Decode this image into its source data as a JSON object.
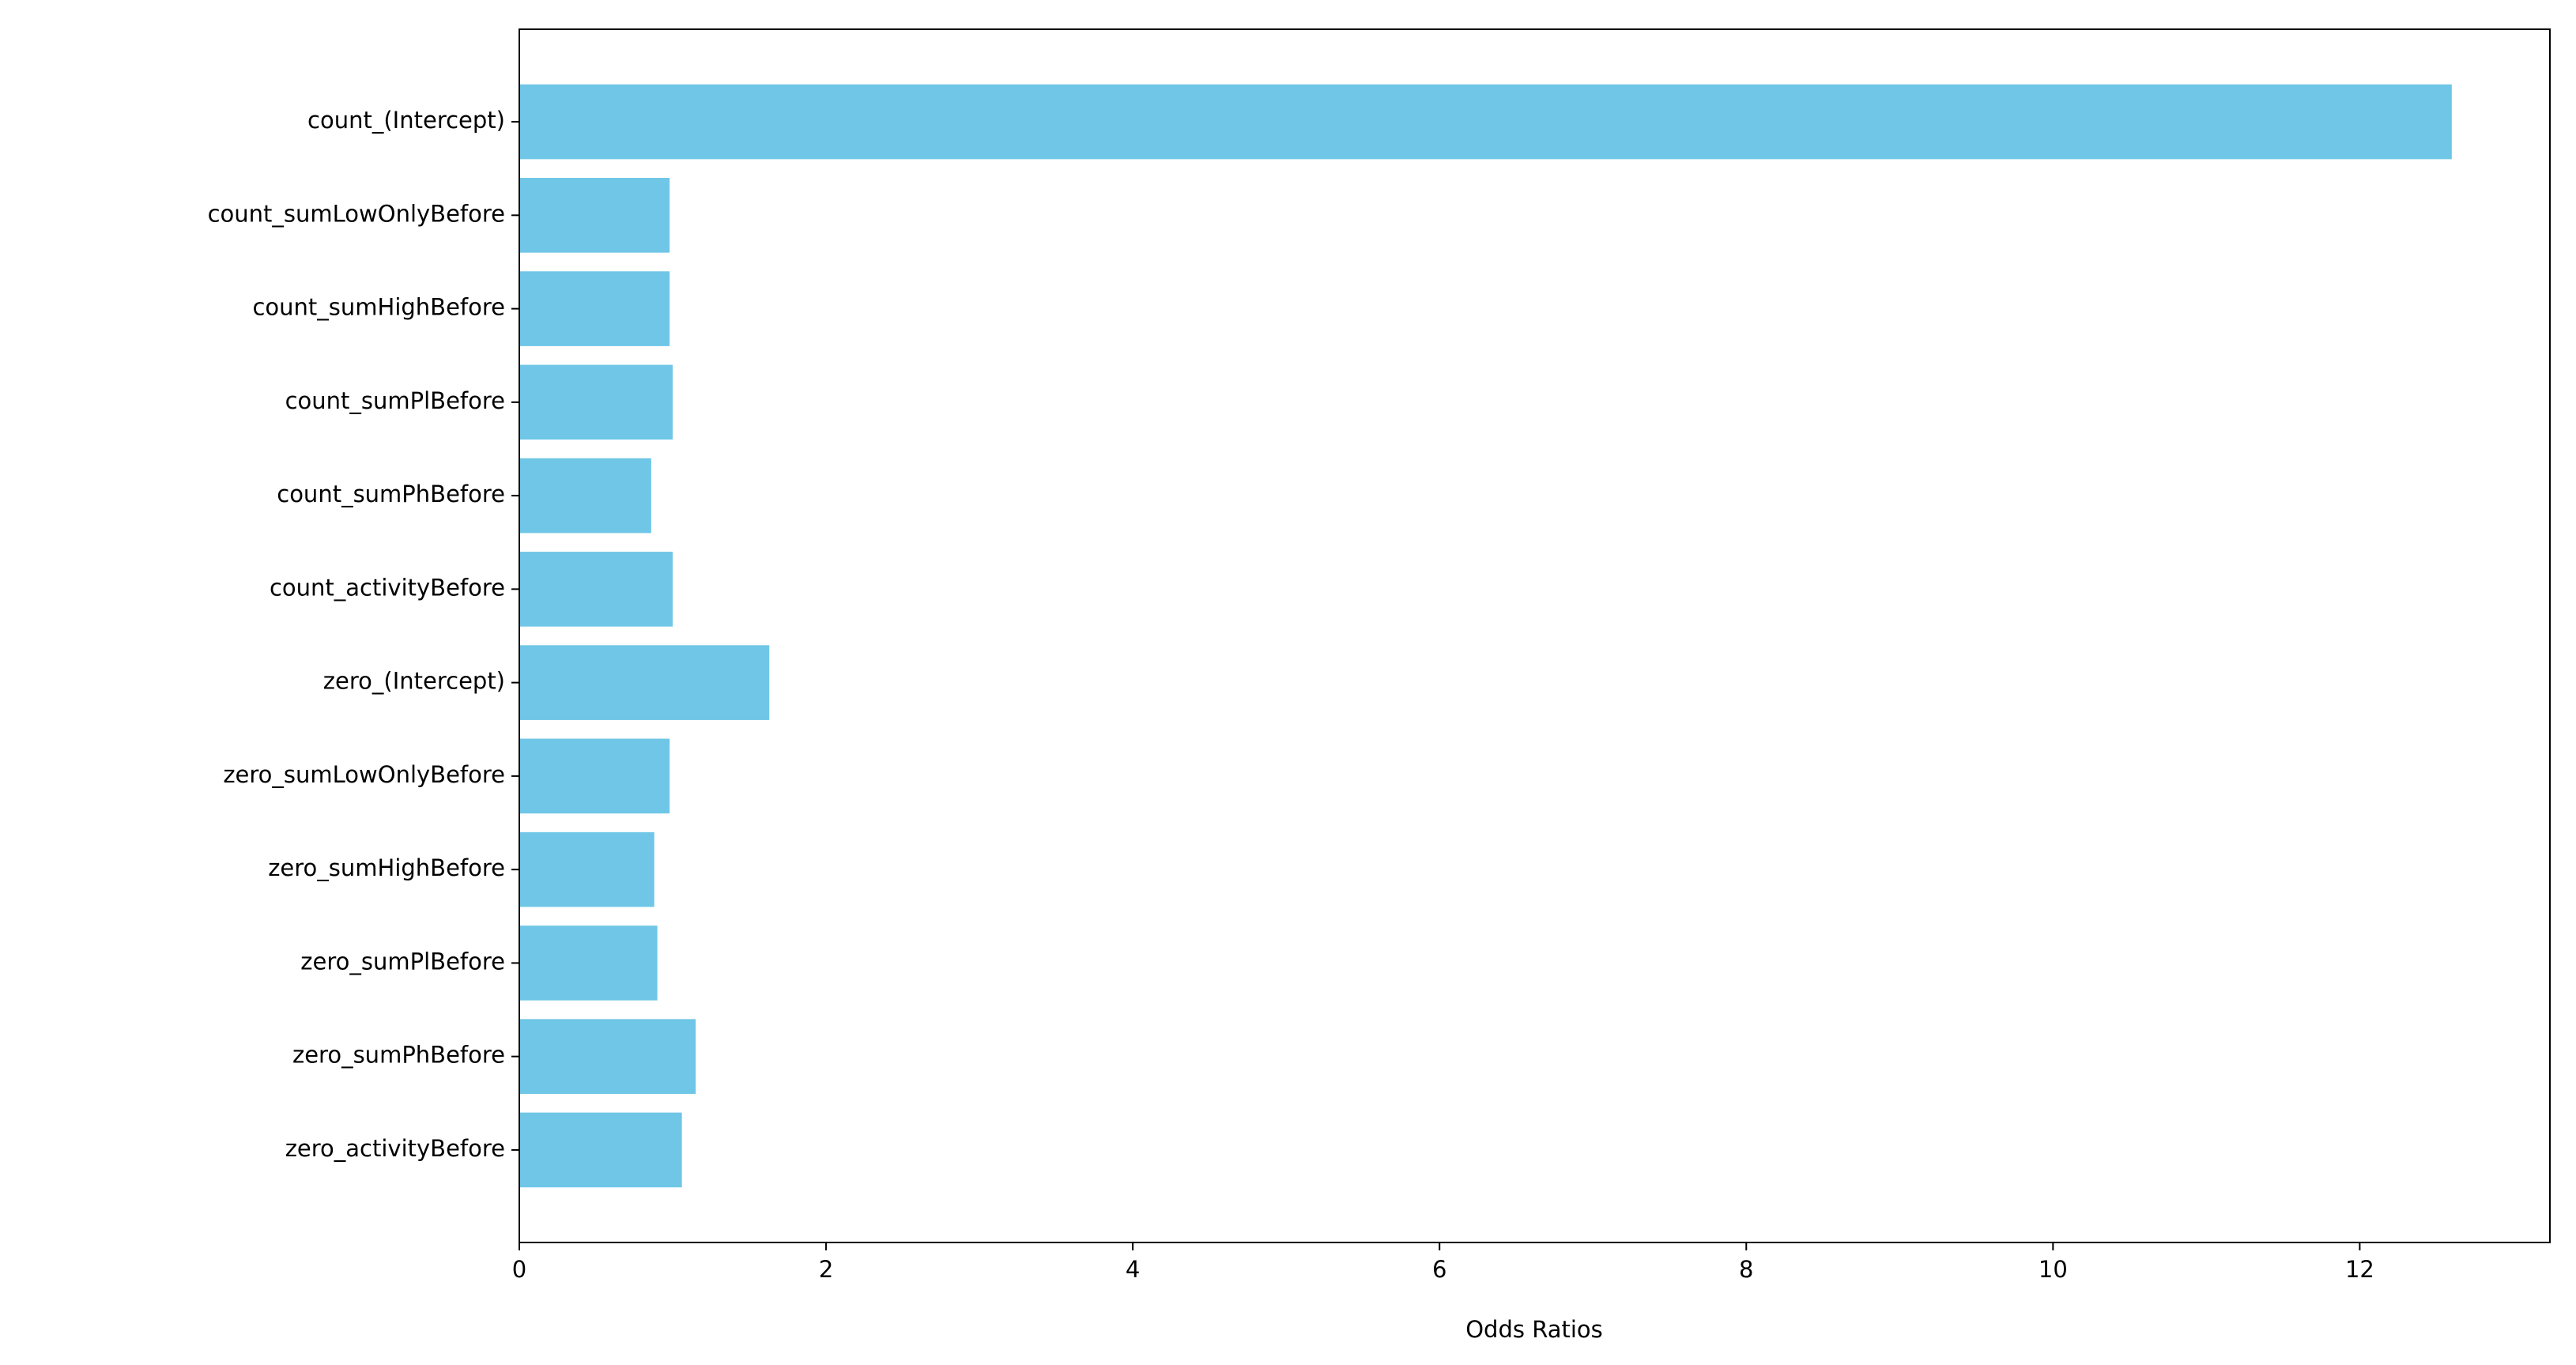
{
  "chart_data": {
    "type": "barh",
    "xlabel": "Odds Ratios",
    "categories": [
      "count_(Intercept)",
      "count_sumLowOnlyBefore",
      "count_sumHighBefore",
      "count_sumPlBefore",
      "count_sumPhBefore",
      "count_activityBefore",
      "zero_(Intercept)",
      "zero_sumLowOnlyBefore",
      "zero_sumHighBefore",
      "zero_sumPlBefore",
      "zero_sumPhBefore",
      "zero_activityBefore"
    ],
    "values": [
      12.6,
      0.98,
      0.98,
      1.0,
      0.86,
      1.0,
      1.63,
      0.98,
      0.88,
      0.9,
      1.15,
      1.06
    ],
    "color": "#6fc6e6",
    "xlim": [
      0,
      13.24
    ],
    "xticks": [
      0,
      2,
      4,
      6,
      8,
      10,
      12
    ]
  }
}
